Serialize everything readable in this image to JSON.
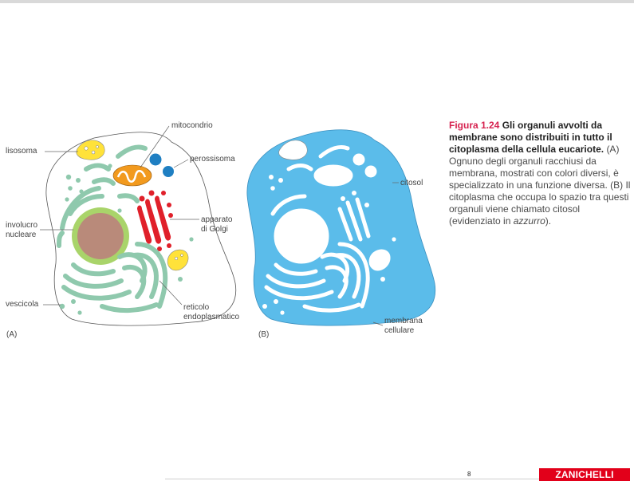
{
  "labels": {
    "mitocondrio": "mitocondrio",
    "lisosoma": "lisosoma",
    "perossisoma": "perossisoma",
    "involucro": [
      "involucro",
      "nucleare"
    ],
    "apparato": [
      "apparato",
      "di Golgi"
    ],
    "vescicola": "vescicola",
    "reticolo": [
      "reticolo",
      "endoplasmatico"
    ],
    "citosol": "citosol",
    "membrana": [
      "membrana",
      "cellulare"
    ],
    "panel_a": "(A)",
    "panel_b": "(B)"
  },
  "caption": {
    "figure": "Figura 1.24",
    "heading": "Gli organuli avvolti da membrane sono distribuiti in tutto il citoplasma della cellula eucariote.",
    "body_1": "(A) Ognuno degli organuli racchiusi da membrana, mostrati con colori diversi, è specializzato in una funzione diversa. (B) Il citoplasma che occupa lo spazio tra questi organuli viene chiamato citosol (evidenziato in",
    "body_italic": "azzurro",
    "body_end": ")."
  },
  "footer": {
    "page_number": "8",
    "brand": "ZANICHELLI"
  },
  "colors": {
    "er_green": "#8fc9ad",
    "nuclear_envelope": "#a9d46a",
    "nucleus": "#b98a7a",
    "mitochondrion": "#f29a1e",
    "lysosome": "#ffe23a",
    "peroxisome": "#1f7fc2",
    "golgi": "#e0202a",
    "cytosol_blue": "#5bbcea",
    "caption_red": "#d6224f",
    "brand_red": "#e2001a"
  }
}
